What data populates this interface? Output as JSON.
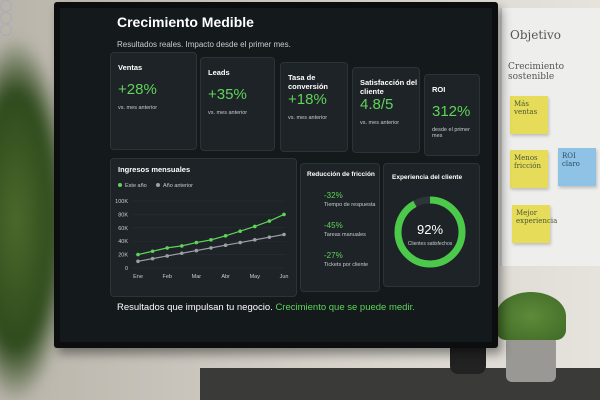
{
  "dashboard": {
    "title": "Crecimiento Medible",
    "subtitle": "Resultados reales. Impacto desde el primer mes.",
    "kpis": [
      {
        "label": "Ventas",
        "value": "+28%",
        "note": "vs. mes anterior"
      },
      {
        "label": "Leads",
        "value": "+35%",
        "note": "vs. mes anterior"
      },
      {
        "label": "Tasa de conversión",
        "value": "+18%",
        "note": "vs. mes anterior"
      },
      {
        "label": "Satisfacción del cliente",
        "value": "4.8/5",
        "note": "vs. mes anterior"
      },
      {
        "label": "ROI",
        "value": "312%",
        "note": "desde el primer mes"
      }
    ],
    "friction": {
      "title": "Reducción de fricción",
      "items": [
        {
          "value": "-32%",
          "label": "Tiempo de respuesta"
        },
        {
          "value": "-45%",
          "label": "Tareas manuales"
        },
        {
          "value": "-27%",
          "label": "Tickets por cliente"
        }
      ]
    },
    "experience": {
      "title": "Experiencia del cliente",
      "value": 92,
      "value_label": "92%",
      "caption": "Clientes satisfechos"
    },
    "footer": {
      "text": "Resultados que impulsan tu negocio.",
      "highlight": "Crecimiento que se puede medir."
    }
  },
  "chart_data": {
    "type": "line",
    "title": "Ingresos mensuales",
    "categories": [
      "Ene",
      null,
      "Feb",
      null,
      "Mar",
      null,
      "Abr",
      null,
      "May",
      null,
      "Jun"
    ],
    "series": [
      {
        "name": "Este año",
        "color": "#5fd35a",
        "values": [
          20000,
          25000,
          30000,
          33000,
          38000,
          42000,
          48000,
          55000,
          62000,
          70000,
          80000
        ]
      },
      {
        "name": "Año anterior",
        "color": "#9aa0a6",
        "values": [
          10000,
          14000,
          18000,
          22000,
          26000,
          30000,
          34000,
          38000,
          42000,
          46000,
          50000
        ]
      }
    ],
    "ylim": [
      0,
      100000
    ],
    "yticks": [
      0,
      {
        "value": 20000,
        "label": "20K"
      },
      {
        "value": 40000,
        "label": "40K"
      },
      {
        "value": 60000,
        "label": "60K"
      },
      {
        "value": 80000,
        "label": "80K"
      },
      {
        "value": 100000,
        "label": "100K"
      }
    ],
    "grid": true
  },
  "whiteboard": {
    "title": "Objetivo",
    "subtitle": "Crecimiento sostenible",
    "notes": [
      "Más ventas",
      "Menos fricción",
      "ROI claro",
      "Mejor experiencia"
    ]
  }
}
